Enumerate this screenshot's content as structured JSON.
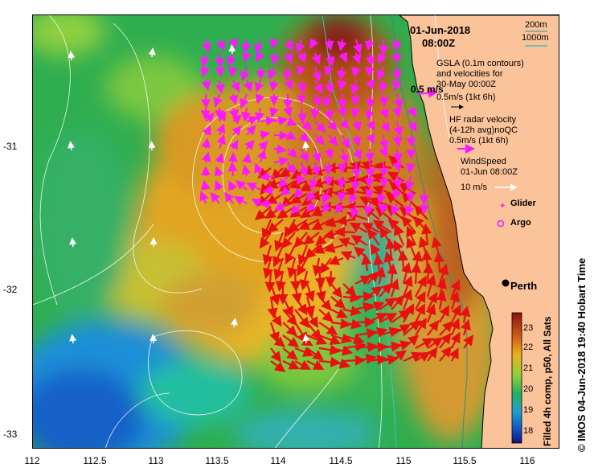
{
  "header": {
    "date": "01-Jun-2018",
    "time": "08:00Z"
  },
  "legend": {
    "depth_200": "200m",
    "depth_1000": "1000m",
    "gsla_line1": "GSLA (0.1m contours)",
    "gsla_line2": "and velocities for",
    "gsla_line3": "30-May 00:00Z",
    "gsla_scale_big": "0.5 m/s",
    "gsla_scale": "0.5m/s (1kt 6h)",
    "hf_line1": "HF radar velocity",
    "hf_line2": "(4-12h avg)noQC",
    "hf_scale": "0.5m/s (1kt 6h)",
    "wind_line1": "WindSpeed",
    "wind_line2": "01-Jun 08:00Z",
    "wind_scale": "10 m/s",
    "glider": "Glider",
    "argo": "Argo"
  },
  "city": "Perth",
  "credit": "©  IMOS 04-Jun-2018 19:40 Hobart Time",
  "colorbar": {
    "title": "Filled 4h comp, p50, All Sats",
    "ticks": [
      "23",
      "22",
      "21",
      "20",
      "19",
      "18"
    ]
  },
  "axes": {
    "x_ticks": [
      "112",
      "112.5",
      "113",
      "113.5",
      "114",
      "114.5",
      "115",
      "115.5",
      "116"
    ],
    "y_ticks": [
      "-31",
      "-32",
      "-33"
    ]
  },
  "colors": {
    "land": "#fbc39a",
    "hf_arrow": "#e81010",
    "gsla_arrow": "#ff18ff",
    "wind_arrow": "#ffffff",
    "depth_200": "#2d8f8f",
    "depth_1000": "#40c0c0"
  }
}
